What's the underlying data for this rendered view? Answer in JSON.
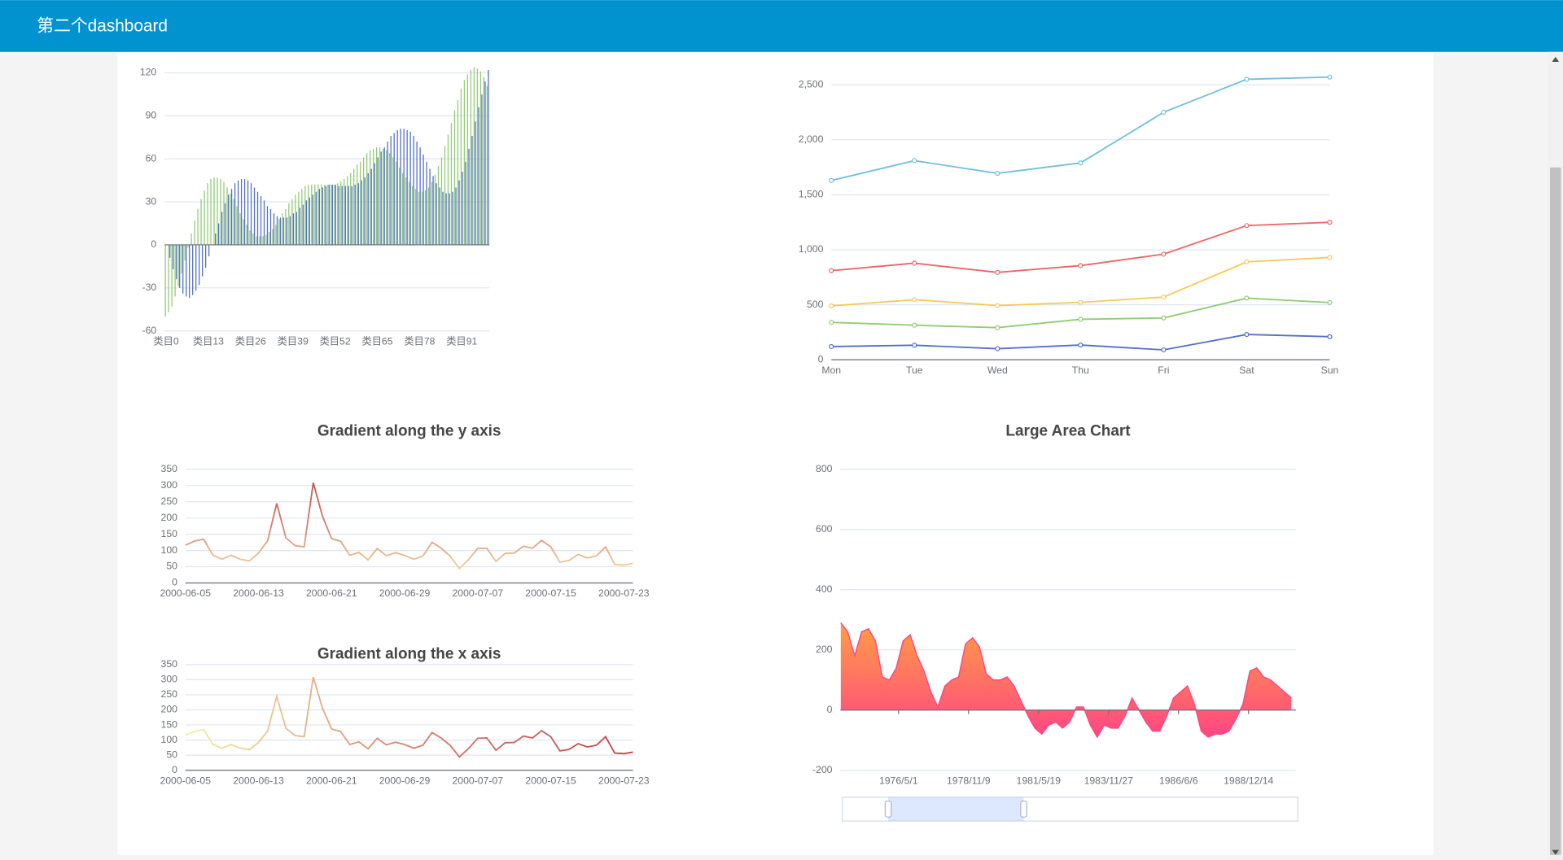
{
  "header": {
    "title": "第二个dashboard"
  },
  "chart_data": [
    {
      "type": "bar",
      "categories": [
        "类目0",
        null,
        null,
        null,
        null,
        null,
        null,
        null,
        null,
        null,
        null,
        null,
        null,
        "类目13",
        null,
        null,
        null,
        null,
        null,
        null,
        null,
        null,
        null,
        null,
        null,
        null,
        "类目26",
        null,
        null,
        null,
        null,
        null,
        null,
        null,
        null,
        null,
        null,
        null,
        null,
        "类目39",
        null,
        null,
        null,
        null,
        null,
        null,
        null,
        null,
        null,
        null,
        null,
        null,
        "类目52",
        null,
        null,
        null,
        null,
        null,
        null,
        null,
        null,
        null,
        null,
        null,
        null,
        "类目65",
        null,
        null,
        null,
        null,
        null,
        null,
        null,
        null,
        null,
        null,
        null,
        null,
        "类目78",
        null,
        null,
        null,
        null,
        null,
        null,
        null,
        null,
        null,
        null,
        null,
        null,
        "类目91",
        null,
        null,
        null,
        null,
        null,
        null,
        null,
        null
      ],
      "series": [
        {
          "color": "#91cc75",
          "values": [
            -50,
            -47,
            -43,
            -36,
            -29,
            -20,
            -11,
            -2,
            8,
            17,
            25,
            32,
            38,
            43,
            46,
            47,
            47,
            46,
            44,
            40,
            36,
            32,
            27,
            22,
            18,
            14,
            10,
            8,
            6,
            6,
            6,
            7,
            9,
            11,
            14,
            18,
            22,
            25,
            29,
            32,
            35,
            37,
            39,
            41,
            42,
            42,
            42,
            42,
            42,
            42,
            42,
            42,
            42,
            43,
            44,
            46,
            48,
            50,
            53,
            56,
            58,
            61,
            64,
            66,
            67,
            68,
            68,
            67,
            66,
            64,
            61,
            58,
            54,
            50,
            47,
            44,
            41,
            39,
            37,
            37,
            38,
            40,
            44,
            49,
            55,
            61,
            69,
            77,
            85,
            94,
            101,
            109,
            115,
            119,
            122,
            124,
            123,
            121,
            117,
            111
          ]
        },
        {
          "color": "#5470c6",
          "values": [
            0,
            -9,
            -17,
            -24,
            -30,
            -34,
            -36,
            -37,
            -35,
            -32,
            -28,
            -22,
            -16,
            -8,
            0,
            8,
            15,
            23,
            29,
            35,
            39,
            43,
            45,
            46,
            46,
            45,
            43,
            40,
            37,
            34,
            31,
            27,
            25,
            22,
            20,
            19,
            19,
            19,
            20,
            22,
            23,
            26,
            28,
            31,
            33,
            35,
            37,
            39,
            40,
            41,
            42,
            42,
            42,
            41,
            41,
            41,
            41,
            41,
            42,
            43,
            45,
            47,
            50,
            53,
            57,
            61,
            65,
            68,
            72,
            76,
            78,
            80,
            81,
            81,
            80,
            79,
            76,
            72,
            68,
            63,
            58,
            53,
            48,
            43,
            40,
            37,
            36,
            36,
            37,
            40,
            45,
            51,
            58,
            67,
            76,
            86,
            96,
            105,
            114,
            122
          ]
        }
      ],
      "ylim": [
        -60,
        120
      ],
      "yticks": [
        -60,
        -30,
        0,
        30,
        60,
        90,
        120
      ],
      "grid": true
    },
    {
      "type": "line",
      "stacked": true,
      "categories": [
        "Mon",
        "Tue",
        "Wed",
        "Thu",
        "Fri",
        "Sat",
        "Sun"
      ],
      "series": [
        {
          "color": "#5470c6",
          "values": [
            120,
            132,
            101,
            134,
            90,
            230,
            210
          ]
        },
        {
          "color": "#91cc75",
          "values": [
            220,
            182,
            191,
            234,
            290,
            330,
            310
          ]
        },
        {
          "color": "#fac858",
          "values": [
            150,
            232,
            201,
            154,
            190,
            330,
            410
          ]
        },
        {
          "color": "#ee6666",
          "values": [
            320,
            332,
            301,
            334,
            390,
            330,
            320
          ]
        },
        {
          "color": "#73c0de",
          "values": [
            820,
            932,
            901,
            934,
            1290,
            1330,
            1320
          ]
        }
      ],
      "ylim": [
        0,
        2500
      ],
      "yticks": [
        0,
        500,
        {
          "value": 1000,
          "label": "1,000"
        },
        {
          "value": 1500,
          "label": "1,500"
        },
        {
          "value": 2000,
          "label": "2,000"
        },
        {
          "value": 2500,
          "label": "2,500"
        }
      ],
      "grid": true
    },
    {
      "type": "line",
      "title": "Gradient along the y axis",
      "categories": [
        "2000-06-05",
        null,
        null,
        null,
        null,
        null,
        null,
        null,
        "2000-06-13",
        null,
        null,
        null,
        null,
        null,
        null,
        null,
        "2000-06-21",
        null,
        null,
        null,
        null,
        null,
        null,
        null,
        "2000-06-29",
        null,
        null,
        null,
        null,
        null,
        null,
        null,
        "2000-07-07",
        null,
        null,
        null,
        null,
        null,
        null,
        null,
        "2000-07-15",
        null,
        null,
        null,
        null,
        null,
        null,
        null,
        "2000-07-23",
        null
      ],
      "values": [
        116,
        129,
        135,
        86,
        73,
        85,
        73,
        68,
        92,
        130,
        245,
        139,
        115,
        111,
        309,
        206,
        137,
        128,
        85,
        94,
        71,
        106,
        84,
        93,
        85,
        73,
        83,
        125,
        107,
        82,
        44,
        72,
        106,
        107,
        66,
        91,
        92,
        113,
        107,
        131,
        111,
        64,
        69,
        88,
        77,
        83,
        111,
        57,
        55,
        60
      ],
      "gradient": [
        "#f6efa6",
        "#d88273",
        "#bf444c"
      ],
      "gradient_axis": "y",
      "ylim": [
        0,
        350
      ],
      "yticks": [
        0,
        50,
        100,
        150,
        200,
        250,
        300,
        350
      ],
      "grid": true
    },
    {
      "type": "line",
      "title": "Gradient along the x axis",
      "categories": [
        "2000-06-05",
        null,
        null,
        null,
        null,
        null,
        null,
        null,
        "2000-06-13",
        null,
        null,
        null,
        null,
        null,
        null,
        null,
        "2000-06-21",
        null,
        null,
        null,
        null,
        null,
        null,
        null,
        "2000-06-29",
        null,
        null,
        null,
        null,
        null,
        null,
        null,
        "2000-07-07",
        null,
        null,
        null,
        null,
        null,
        null,
        null,
        "2000-07-15",
        null,
        null,
        null,
        null,
        null,
        null,
        null,
        "2000-07-23",
        null
      ],
      "values": [
        116,
        129,
        135,
        86,
        73,
        85,
        73,
        68,
        92,
        130,
        245,
        139,
        115,
        111,
        309,
        206,
        137,
        128,
        85,
        94,
        71,
        106,
        84,
        93,
        85,
        73,
        83,
        125,
        107,
        82,
        44,
        72,
        106,
        107,
        66,
        91,
        92,
        113,
        107,
        131,
        111,
        64,
        69,
        88,
        77,
        83,
        111,
        57,
        55,
        60
      ],
      "gradient": [
        "#f6efa6",
        "#d88273",
        "#bf444c"
      ],
      "gradient_axis": "x",
      "ylim": [
        0,
        350
      ],
      "yticks": [
        0,
        50,
        100,
        150,
        200,
        250,
        300,
        350
      ],
      "grid": true
    },
    {
      "type": "area",
      "title": "Large Area Chart",
      "x": [
        "1974/4/1",
        "1974/7/1",
        "1974/10/1",
        "1975/1/1",
        "1975/4/1",
        "1975/7/1",
        "1975/10/1",
        "1976/1/1",
        "1976/4/1",
        "1976/7/1",
        "1976/10/1",
        "1977/1/1",
        "1977/4/1",
        "1977/7/1",
        "1977/10/1",
        "1978/1/1",
        "1978/4/1",
        "1978/7/1",
        "1978/10/1",
        "1979/1/1",
        "1979/4/1",
        "1979/7/1",
        "1979/10/1",
        "1980/1/1",
        "1980/4/1",
        "1980/7/1",
        "1980/10/1",
        "1981/1/1",
        "1981/4/1",
        "1981/7/1",
        "1981/10/1",
        "1982/1/1",
        "1982/4/1",
        "1982/7/1",
        "1982/10/1",
        "1983/1/1",
        "1983/4/1",
        "1983/7/1",
        "1983/10/1",
        "1984/1/1",
        "1984/4/1",
        "1984/7/1",
        "1984/10/1",
        "1985/1/1",
        "1985/4/1",
        "1985/7/1",
        "1985/10/1",
        "1986/1/1",
        "1986/4/1",
        "1986/7/1",
        "1986/10/1",
        "1987/1/1",
        "1987/4/1",
        "1987/7/1",
        "1987/10/1",
        "1988/1/1",
        "1988/4/1",
        "1988/7/1",
        "1988/10/1",
        "1989/1/1",
        "1989/4/1",
        "1989/7/1",
        "1989/10/1",
        "1990/1/1",
        "1990/4/1",
        "1990/7/1"
      ],
      "values": [
        290,
        260,
        180,
        260,
        270,
        230,
        110,
        100,
        140,
        230,
        250,
        180,
        130,
        60,
        10,
        80,
        100,
        110,
        220,
        240,
        210,
        120,
        100,
        100,
        110,
        80,
        30,
        -20,
        -60,
        -80,
        -50,
        -40,
        -60,
        -40,
        10,
        10,
        -50,
        -90,
        -50,
        -60,
        -60,
        -20,
        40,
        0,
        -40,
        -70,
        -70,
        -20,
        40,
        60,
        80,
        20,
        -70,
        -90,
        -80,
        -80,
        -70,
        -30,
        20,
        130,
        140,
        110,
        100,
        80,
        60,
        40
      ],
      "color": "#ff4683",
      "area_gradient": [
        "#ff9e44",
        "#ff4683"
      ],
      "xlim": [
        "1974/3/26",
        "1990/8/29"
      ],
      "xticks": [
        "1976/5/1",
        "1978/11/9",
        "1981/5/19",
        "1983/11/27",
        "1986/6/6",
        "1988/12/14"
      ],
      "ylim": [
        -200,
        800
      ],
      "yticks": [
        -200,
        0,
        200,
        400,
        600,
        800
      ],
      "grid": true
    }
  ]
}
